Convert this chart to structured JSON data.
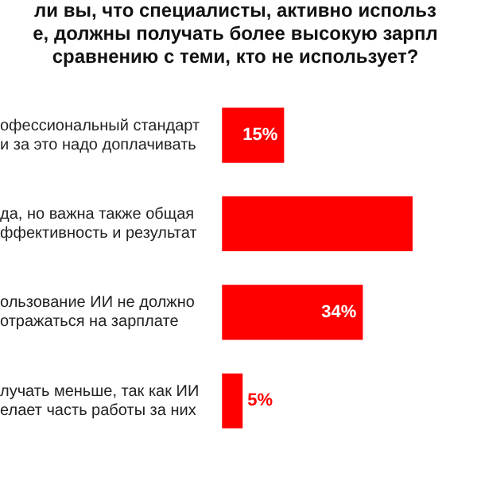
{
  "chart_data": {
    "type": "bar",
    "orientation": "horizontal",
    "title": "ли вы, что специалисты, активно использ\nе, должны получать более высокую зарпл\nсравнению с теми, кто не использует?",
    "categories": [
      "офессиональный стандарт\nи за это надо доплачивать",
      "да, но важна также общая\nффективность и результат",
      "ользование ИИ не должно\nотражаться на зарплате",
      "лучать меньше, так как ИИ\nелает часть работы за них"
    ],
    "values": [
      15,
      46,
      34,
      5
    ],
    "value_labels": [
      "15%",
      null,
      "34%",
      "5%"
    ],
    "color": "#ff0000",
    "legend": false
  }
}
